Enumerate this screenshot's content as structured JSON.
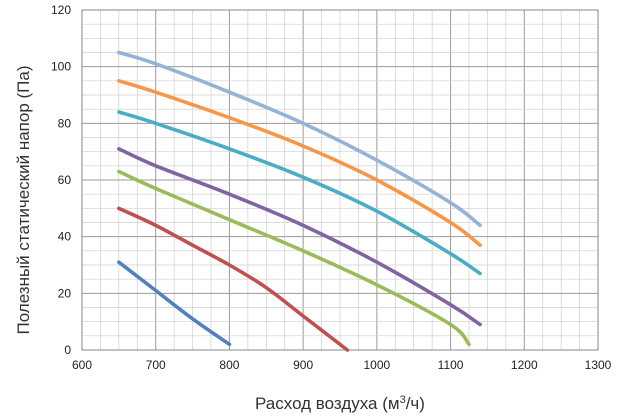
{
  "chart_data": {
    "type": "line",
    "title": "",
    "xlabel": "Расход воздуха (м",
    "xlabel_sup": "3",
    "xlabel_tail": "/ч)",
    "ylabel": "Полезный статический напор (Па)",
    "xlim": [
      600,
      1300
    ],
    "ylim": [
      0,
      120
    ],
    "xticks": [
      "600",
      "700",
      "800",
      "900",
      "1000",
      "1100",
      "1200",
      "1300"
    ],
    "yticks": [
      "0",
      "20",
      "40",
      "60",
      "80",
      "100",
      "120"
    ],
    "x_minor_step": 25,
    "y_minor_step": 5,
    "grid": true,
    "legend": "none",
    "series": [
      {
        "color": "#4f81bd",
        "x": [
          650,
          700,
          750,
          800
        ],
        "y": [
          31,
          21,
          11,
          2
        ]
      },
      {
        "color": "#c0504d",
        "x": [
          650,
          700,
          750,
          800,
          850,
          900,
          960
        ],
        "y": [
          50,
          44,
          37,
          30,
          22,
          12,
          0
        ]
      },
      {
        "color": "#9bbb59",
        "x": [
          650,
          700,
          800,
          900,
          1000,
          1100,
          1125
        ],
        "y": [
          63,
          57,
          46,
          35,
          23,
          9,
          2
        ]
      },
      {
        "color": "#8064a2",
        "x": [
          650,
          700,
          800,
          900,
          1000,
          1100,
          1140
        ],
        "y": [
          71,
          65,
          55,
          44,
          31,
          16,
          9
        ]
      },
      {
        "color": "#4bacc6",
        "x": [
          650,
          700,
          800,
          900,
          1000,
          1100,
          1140
        ],
        "y": [
          84,
          80,
          71,
          61,
          49,
          34,
          27
        ]
      },
      {
        "color": "#f79646",
        "x": [
          650,
          700,
          800,
          900,
          1000,
          1100,
          1140
        ],
        "y": [
          95,
          91,
          82,
          72,
          60,
          45,
          37
        ]
      },
      {
        "color": "#95b3d7",
        "x": [
          650,
          700,
          800,
          900,
          1000,
          1100,
          1140
        ],
        "y": [
          105,
          101,
          91,
          80,
          67,
          52,
          44
        ]
      }
    ]
  }
}
